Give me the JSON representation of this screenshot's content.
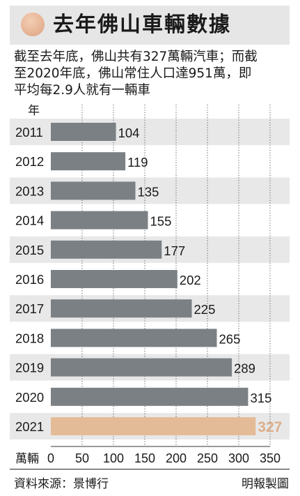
{
  "title": "去年佛山車輛數據",
  "description": [
    "截至去年底，佛山共有327萬輛汽車；而截",
    "至2020年底，佛山常住人口達951萬，即",
    "平均每2.9人就有一輛車"
  ],
  "source": "資料來源：景博行",
  "credit": "明報製圖",
  "colors": {
    "bar": "#7b8084",
    "highlight_bar": "#e4bb97",
    "highlight_label": "#dcae8a",
    "row_band": "#e8e8e8"
  },
  "chart_data": {
    "type": "bar",
    "orientation": "horizontal",
    "y_axis_label": "年",
    "x_axis_label": "萬輛",
    "categories": [
      "2011",
      "2012",
      "2013",
      "2014",
      "2015",
      "2016",
      "2017",
      "2018",
      "2019",
      "2020",
      "2021"
    ],
    "values": [
      104,
      119,
      135,
      155,
      177,
      202,
      225,
      265,
      289,
      315,
      327
    ],
    "highlight_index": 10,
    "xlim": [
      0,
      350
    ],
    "xticks": [
      "0",
      "50",
      "100",
      "150",
      "200",
      "250",
      "300",
      "350"
    ],
    "grid": "vertical dotted"
  }
}
